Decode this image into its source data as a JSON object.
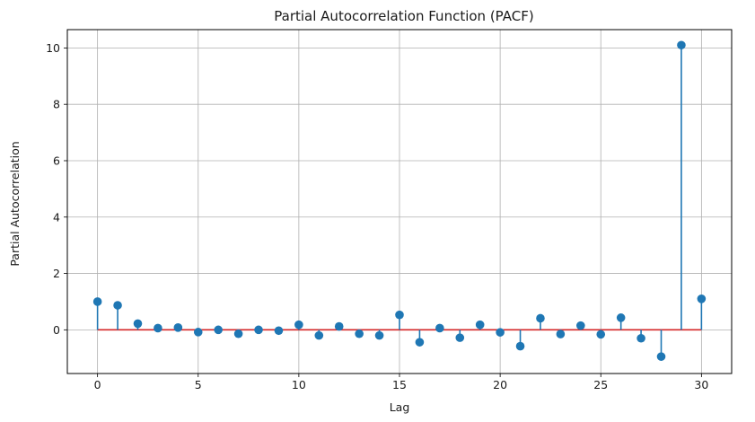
{
  "chart_data": {
    "type": "stem",
    "title": "Partial Autocorrelation Function (PACF)",
    "xlabel": "Lag",
    "ylabel": "Partial Autocorrelation",
    "xlim": [
      -1.5,
      31.5
    ],
    "ylim": [
      -1.55,
      10.65
    ],
    "xticks": [
      0,
      5,
      10,
      15,
      20,
      25,
      30
    ],
    "yticks": [
      0,
      2,
      4,
      6,
      8,
      10
    ],
    "grid": true,
    "baseline": 0,
    "colors": {
      "stem": "#1f77b4",
      "marker": "#1f77b4",
      "baseline": "#d62728",
      "grid": "#b0b0b0"
    },
    "x": [
      0,
      1,
      2,
      3,
      4,
      5,
      6,
      7,
      8,
      9,
      10,
      11,
      12,
      13,
      14,
      15,
      16,
      17,
      18,
      19,
      20,
      21,
      22,
      23,
      24,
      25,
      26,
      27,
      28,
      29,
      30
    ],
    "values": [
      1.0,
      0.87,
      0.22,
      0.06,
      0.08,
      -0.08,
      0.0,
      -0.14,
      0.0,
      -0.03,
      0.18,
      -0.2,
      0.12,
      -0.14,
      -0.2,
      0.53,
      -0.44,
      0.06,
      -0.28,
      0.18,
      -0.09,
      -0.58,
      0.41,
      -0.15,
      0.15,
      -0.16,
      0.43,
      -0.3,
      -0.95,
      10.1,
      1.1
    ]
  }
}
